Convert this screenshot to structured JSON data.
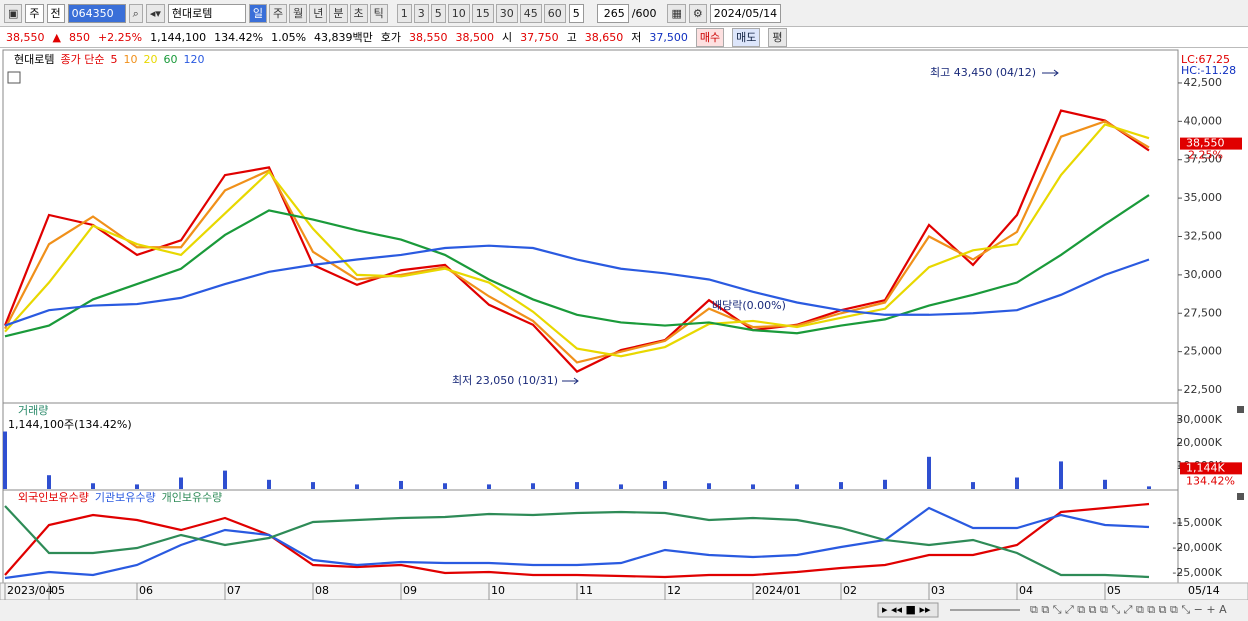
{
  "toolbar": {
    "items": [
      "주",
      "전"
    ],
    "code": "064350",
    "name": "현대로템",
    "periods": [
      "일",
      "주",
      "월",
      "년",
      "분",
      "초",
      "틱"
    ],
    "intervals": [
      "1",
      "3",
      "5",
      "10",
      "15",
      "30",
      "45",
      "60"
    ],
    "interval": "5",
    "count": "265",
    "max": "/600",
    "date": "2024/05/14"
  },
  "quote": {
    "price": "38,550",
    "arrow": "▲",
    "change": "850",
    "change_pct": "+2.25%",
    "volume": "1,144,100",
    "volume_pct": "134.42%",
    "turnover": "1.05%",
    "amount": "43,839백만",
    "ask_label": "호가",
    "ask": "38,550",
    "bid": "38,500",
    "open_label": "시",
    "open": "37,750",
    "high_label": "고",
    "high": "38,650",
    "low_label": "저",
    "low": "37,500",
    "buttons": [
      "매수",
      "매도",
      "평"
    ]
  },
  "chart_data": [
    {
      "type": "line",
      "title": "현대로템",
      "legend_prefix": "종가 단순",
      "categories": [
        "2023/04",
        "05",
        null,
        "06",
        null,
        "07",
        null,
        "08",
        null,
        "09",
        null,
        "10",
        null,
        "11",
        null,
        "12",
        null,
        "2024/01",
        null,
        "02",
        null,
        "03",
        null,
        "04",
        null,
        "05",
        null
      ],
      "x_end_label": "05/14",
      "series": [
        {
          "name": "5",
          "color": "#e00000",
          "values": [
            26700,
            33900,
            33250,
            31300,
            32250,
            36500,
            37000,
            30650,
            29350,
            30300,
            30650,
            28050,
            26750,
            23700,
            25100,
            25750,
            28350,
            26400,
            26750,
            27700,
            28350,
            33250,
            30650,
            33900,
            40700,
            40050,
            38100
          ]
        },
        {
          "name": "10",
          "color": "#f0901a",
          "values": [
            26500,
            32000,
            33800,
            31800,
            31800,
            35500,
            36800,
            31500,
            29700,
            30000,
            30500,
            28600,
            27000,
            24300,
            25000,
            25700,
            27800,
            26600,
            26700,
            27500,
            28200,
            32500,
            31000,
            32800,
            39000,
            40000,
            38300
          ]
        },
        {
          "name": "20",
          "color": "#e8d800",
          "values": [
            26300,
            29500,
            33200,
            32000,
            31300,
            34000,
            36700,
            33000,
            30000,
            29900,
            30400,
            29500,
            27600,
            25200,
            24700,
            25300,
            26800,
            27000,
            26600,
            27200,
            27800,
            30500,
            31600,
            32000,
            36500,
            39800,
            38900
          ]
        },
        {
          "name": "60",
          "color": "#1a9a3a",
          "values": [
            26000,
            26700,
            28400,
            29400,
            30400,
            32600,
            34200,
            33600,
            32900,
            32300,
            31300,
            29700,
            28400,
            27400,
            26900,
            26700,
            26900,
            26400,
            26200,
            26700,
            27100,
            28000,
            28700,
            29500,
            31300,
            33300,
            35200
          ]
        },
        {
          "name": "120",
          "color": "#2a5ae0",
          "values": [
            26700,
            27700,
            28000,
            28100,
            28500,
            29400,
            30200,
            30650,
            31000,
            31300,
            31750,
            31900,
            31750,
            31000,
            30400,
            30100,
            29700,
            28900,
            28200,
            27700,
            27400,
            27400,
            27500,
            27700,
            28700,
            30000,
            31000
          ]
        }
      ],
      "ylim": [
        21850,
        44190
      ],
      "yticks": [
        {
          "value": 22500,
          "label": "22,500"
        },
        {
          "value": 25000,
          "label": "25,000"
        },
        {
          "value": 27500,
          "label": "27,500"
        },
        {
          "value": 30000,
          "label": "30,000"
        },
        {
          "value": 32500,
          "label": "32,500"
        },
        {
          "value": 35000,
          "label": "35,000"
        },
        {
          "value": 37500,
          "label": "37,500"
        },
        {
          "value": 40000,
          "label": "40,000"
        },
        {
          "value": 42500,
          "label": "42,500"
        }
      ],
      "annotations": [
        "최고 43,450 (04/12)",
        "최저 23,050 (10/31)",
        "배당락(0.00%)"
      ],
      "indicators": [
        "LC:67.25",
        "HC:-11.28"
      ],
      "last_price": {
        "value": 38550,
        "label": "38,550"
      },
      "last_change": "2.25%"
    },
    {
      "type": "bar",
      "title": "거래량",
      "subtitle": "1,144,100주(134.42%)",
      "color": "#2f4fd0",
      "values": [
        25000,
        6000,
        2500,
        2000,
        5000,
        8000,
        4000,
        3000,
        2000,
        3500,
        2500,
        2000,
        2500,
        3000,
        2000,
        3500,
        2500,
        2000,
        2000,
        3000,
        4000,
        14000,
        3000,
        5000,
        12000,
        4000,
        1144
      ],
      "ylim": [
        0,
        36100
      ],
      "yticks": [
        {
          "value": 10000,
          "label": "10,000K"
        },
        {
          "value": 20000,
          "label": "20,000K"
        },
        {
          "value": 30000,
          "label": "30,000K"
        }
      ],
      "last_value": {
        "value": 1144,
        "label": "1,144K"
      },
      "last_pct": "134.42%"
    },
    {
      "type": "line",
      "series": [
        {
          "name": "외국인보유수량",
          "color": "#e00000",
          "values": [
            -25400,
            -15400,
            -13400,
            -14400,
            -16400,
            -14000,
            -17400,
            -23400,
            -23800,
            -23400,
            -25000,
            -24800,
            -25400,
            -25400,
            -25600,
            -25800,
            -25400,
            -25400,
            -24800,
            -24000,
            -23400,
            -21400,
            -21400,
            -19400,
            -12800,
            -12000,
            -11200
          ]
        },
        {
          "name": "기관보유수량",
          "color": "#2a5ae0",
          "values": [
            -26000,
            -24800,
            -25400,
            -23400,
            -19400,
            -16400,
            -17400,
            -22400,
            -23400,
            -22800,
            -23000,
            -23000,
            -23400,
            -23400,
            -23000,
            -20400,
            -21400,
            -21800,
            -21400,
            -19800,
            -18400,
            -12000,
            -16000,
            -16000,
            -13400,
            -15400,
            -15800
          ]
        },
        {
          "name": "개인보유수량",
          "color": "#2e8b57",
          "values": [
            -11600,
            -21000,
            -21000,
            -20000,
            -17400,
            -19400,
            -18000,
            -14800,
            -14400,
            -14000,
            -13800,
            -13200,
            -13400,
            -13000,
            -12800,
            -13000,
            -14400,
            -14000,
            -14400,
            -16000,
            -18400,
            -19400,
            -18400,
            -21000,
            -25400,
            -25400,
            -25800
          ]
        }
      ],
      "ylim": [
        -27000,
        -8800
      ],
      "yticks": [
        {
          "value": -25000,
          "label": "-25,000K"
        },
        {
          "value": -20000,
          "label": "-20,000K"
        },
        {
          "value": -15000,
          "label": "-15,000K"
        }
      ]
    }
  ]
}
